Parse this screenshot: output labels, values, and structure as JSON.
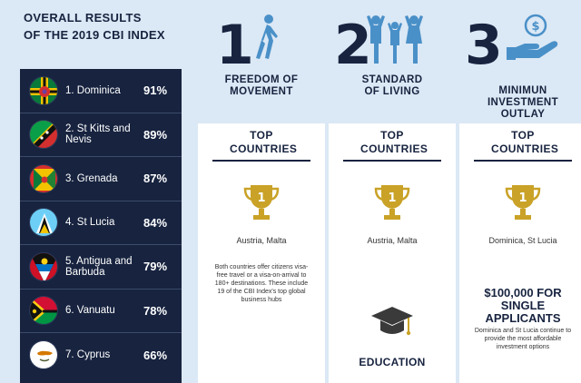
{
  "title": {
    "line1": "OVERALL RESULTS",
    "line2": "OF THE 2019 CBI INDEX"
  },
  "rankings": [
    {
      "label": "1. Dominica",
      "pct": "91%",
      "flag": "dominica-flag"
    },
    {
      "label": "2. St Kitts and Nevis",
      "pct": "89%",
      "flag": "st-kitts-flag"
    },
    {
      "label": "3. Grenada",
      "pct": "87%",
      "flag": "grenada-flag"
    },
    {
      "label": "4. St Lucia",
      "pct": "84%",
      "flag": "st-lucia-flag"
    },
    {
      "label": "5. Antigua and Barbuda",
      "pct": "79%",
      "flag": "antigua-flag"
    },
    {
      "label": "6. Vanuatu",
      "pct": "78%",
      "flag": "vanuatu-flag"
    },
    {
      "label": "7. Cyprus",
      "pct": "66%",
      "flag": "cyprus-flag"
    }
  ],
  "pillars": [
    {
      "number": "1",
      "icon": "walking-person-icon",
      "heading": "FREEDOM OF MOVEMENT",
      "card_title": "TOP COUNTRIES",
      "countries": "Austria, Malta",
      "body": "Both countries offer citizens visa-free travel or a visa-on-arrival to 180+ destinations. These include 19 of the CBI Index's top global business hubs"
    },
    {
      "number": "2",
      "icon": "family-icon",
      "heading": "STANDARD OF LIVING",
      "card_title": "TOP COUNTRIES",
      "countries": "Austria, Malta",
      "sub_label": "EDUCATION"
    },
    {
      "number": "3",
      "icon": "money-hand-icon",
      "heading": "MINIMUN INVESTMENT OUTLAY",
      "card_title": "TOP COUNTRIES",
      "countries": "Dominica, St Lucia",
      "amount": "$100,000 FOR SINGLE APPLICANTS",
      "body": "Dominica and St Lucia continue to provide the most affordable investment options"
    }
  ],
  "colors": {
    "navy": "#17233f",
    "gold": "#c9a227",
    "background": "#dbe8f5",
    "icon_blue": "#4a90c8"
  }
}
